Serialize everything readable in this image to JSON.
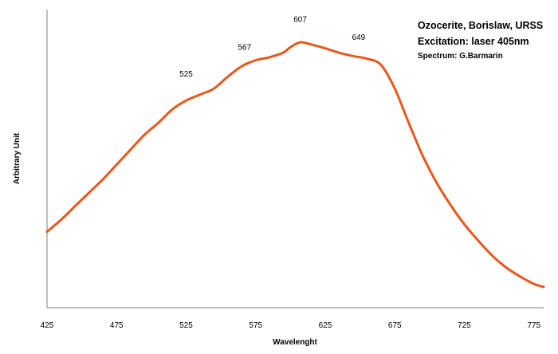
{
  "chart_data": {
    "type": "line",
    "xlabel": "Wavelenght",
    "ylabel": "Arbitrary Unit",
    "xlim": [
      425,
      782
    ],
    "ylim": [
      0,
      1
    ],
    "x_ticks": [
      "425",
      "475",
      "525",
      "575",
      "625",
      "675",
      "725",
      "775"
    ],
    "grid": false,
    "legend": "none",
    "annotations": [
      "Ozocerite, Borislaw, URSS",
      "Excitation: laser 405nm",
      "Spectrum: G.Barmarin"
    ],
    "peak_labels": [
      {
        "text": "525",
        "x": 525,
        "y": 0.775
      },
      {
        "text": "567",
        "x": 567,
        "y": 0.865
      },
      {
        "text": "607",
        "x": 607,
        "y": 0.958
      },
      {
        "text": "649",
        "x": 649,
        "y": 0.898
      }
    ],
    "series": [
      {
        "color": "#E8581B",
        "x": [
          425,
          435,
          445,
          455,
          465,
          475,
          485,
          495,
          505,
          515,
          525,
          535,
          545,
          555,
          565,
          575,
          585,
          595,
          600,
          607,
          615,
          625,
          635,
          645,
          655,
          665,
          675,
          685,
          695,
          705,
          715,
          725,
          735,
          745,
          755,
          765,
          775,
          782
        ],
        "y": [
          0.255,
          0.295,
          0.34,
          0.385,
          0.43,
          0.48,
          0.53,
          0.58,
          0.62,
          0.665,
          0.695,
          0.715,
          0.735,
          0.775,
          0.81,
          0.83,
          0.84,
          0.856,
          0.874,
          0.89,
          0.883,
          0.87,
          0.855,
          0.844,
          0.835,
          0.815,
          0.735,
          0.62,
          0.51,
          0.42,
          0.345,
          0.28,
          0.225,
          0.175,
          0.135,
          0.105,
          0.08,
          0.07
        ]
      }
    ]
  }
}
